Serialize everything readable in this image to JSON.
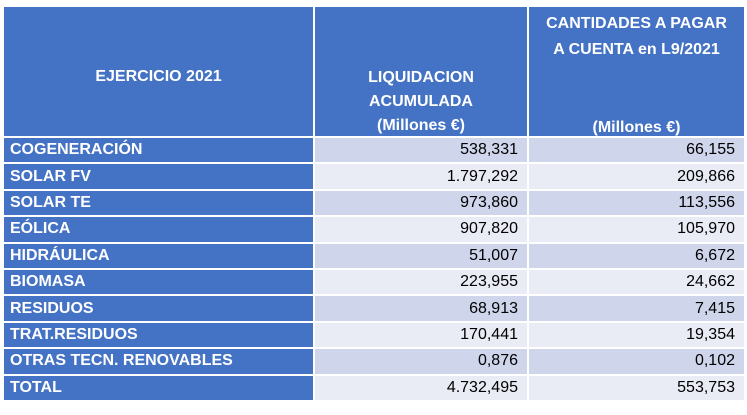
{
  "header": {
    "col1": "EJERCICIO 2021",
    "col2_line1": "LIQUIDACION",
    "col2_line2": "ACUMULADA",
    "col2_line3": "(Millones €)",
    "col3_line1": "CANTIDADES A PAGAR",
    "col3_line2": "A CUENTA en L9/2021",
    "col3_line3": "(Millones €)"
  },
  "rows": [
    {
      "label": "COGENERACIÓN",
      "liquidacion": "538,331",
      "cantidades": "66,155"
    },
    {
      "label": "SOLAR FV",
      "liquidacion": "1.797,292",
      "cantidades": "209,866"
    },
    {
      "label": "SOLAR TE",
      "liquidacion": "973,860",
      "cantidades": "113,556"
    },
    {
      "label": "EÓLICA",
      "liquidacion": "907,820",
      "cantidades": "105,970"
    },
    {
      "label": "HIDRÁULICA",
      "liquidacion": "51,007",
      "cantidades": "6,672"
    },
    {
      "label": "BIOMASA",
      "liquidacion": "223,955",
      "cantidades": "24,662"
    },
    {
      "label": "RESIDUOS",
      "liquidacion": "68,913",
      "cantidades": "7,415"
    },
    {
      "label": "TRAT.RESIDUOS",
      "liquidacion": "170,441",
      "cantidades": "19,354"
    },
    {
      "label": "OTRAS TECN. RENOVABLES",
      "liquidacion": "0,876",
      "cantidades": "0,102"
    },
    {
      "label": "TOTAL",
      "liquidacion": "4.732,495",
      "cantidades": "553,753"
    }
  ],
  "colors": {
    "header_bg": "#4472c4",
    "row_band_dark": "#cfd5ea",
    "row_band_light": "#e9ebf5"
  }
}
